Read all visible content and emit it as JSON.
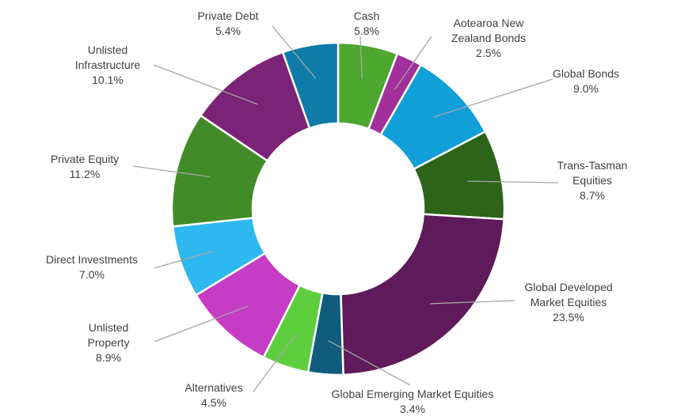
{
  "chart_data": {
    "type": "pie",
    "subtype": "donut",
    "title": "",
    "legend": "none",
    "slices": [
      {
        "label_lines": [
          "Cash"
        ],
        "value": 5.8,
        "value_label": "5.8%",
        "color": "#4ea72e"
      },
      {
        "label_lines": [
          "Aotearoa New",
          "Zealand Bonds"
        ],
        "value": 2.5,
        "value_label": "2.5%",
        "color": "#a2309b"
      },
      {
        "label_lines": [
          "Global Bonds"
        ],
        "value": 9.0,
        "value_label": "9.0%",
        "color": "#119fd8"
      },
      {
        "label_lines": [
          "Trans-Tasman",
          "Equities"
        ],
        "value": 8.7,
        "value_label": "8.7%",
        "color": "#2d6419"
      },
      {
        "label_lines": [
          "Global Developed",
          "Market Equities"
        ],
        "value": 23.5,
        "value_label": "23.5%",
        "color": "#5e1a5b"
      },
      {
        "label_lines": [
          "Global Emerging Market Equities"
        ],
        "value": 3.4,
        "value_label": "3.4%",
        "color": "#0f5c7c"
      },
      {
        "label_lines": [
          "Alternatives"
        ],
        "value": 4.5,
        "value_label": "4.5%",
        "color": "#5fce3e"
      },
      {
        "label_lines": [
          "Unlisted",
          "Property"
        ],
        "value": 8.9,
        "value_label": "8.9%",
        "color": "#c73cc4"
      },
      {
        "label_lines": [
          "Direct Investments"
        ],
        "value": 7.0,
        "value_label": "7.0%",
        "color": "#2eb8f0"
      },
      {
        "label_lines": [
          "Private Equity"
        ],
        "value": 11.2,
        "value_label": "11.2%",
        "color": "#428b29"
      },
      {
        "label_lines": [
          "Unlisted",
          "Infrastructure"
        ],
        "value": 10.1,
        "value_label": "10.1%",
        "color": "#7b2376"
      },
      {
        "label_lines": [
          "Private Debt"
        ],
        "value": 5.4,
        "value_label": "5.4%",
        "color": "#0e7ba8"
      }
    ]
  }
}
